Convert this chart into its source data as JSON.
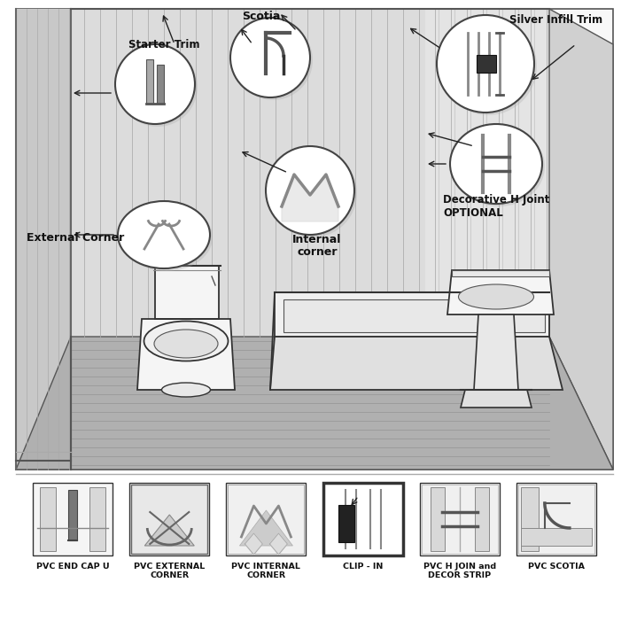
{
  "bg_color": "#ffffff",
  "labels": {
    "starter_trim": "Starter Trim",
    "scotia": "Scotia",
    "silver_infill": "Silver Infill Trim",
    "decorative_h_line1": "Decorative H Joint",
    "decorative_h_line2": "OPTIONAL",
    "external_corner": "External Corner",
    "internal_corner_line1": "Internal",
    "internal_corner_line2": "corner"
  },
  "bottom_labels": [
    "PVC END CAP U",
    "PVC EXTERNAL\nCORNER",
    "PVC INTERNAL\nCORNER",
    "CLIP - IN",
    "PVC H JOIN and\nDECOR STRIP",
    "PVC SCOTIA"
  ]
}
